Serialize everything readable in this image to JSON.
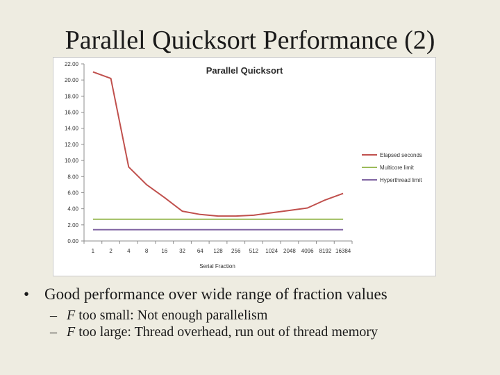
{
  "slide": {
    "title": "Parallel Quicksort Performance (2)",
    "bullet": "Good performance over wide range of fraction values",
    "bullet_marker": "•",
    "subbullets": [
      {
        "marker": "–",
        "var": "F",
        "text": " too small: Not enough parallelism"
      },
      {
        "marker": "–",
        "var": "F",
        "text": " too large: Thread overhead, run out of thread memory"
      }
    ]
  },
  "chart_data": {
    "type": "line",
    "title": "Parallel Quicksort",
    "xlabel": "Serial Fraction",
    "ylabel": "",
    "categories": [
      "1",
      "2",
      "4",
      "8",
      "16",
      "32",
      "64",
      "128",
      "256",
      "512",
      "1024",
      "2048",
      "4096",
      "8192",
      "16384"
    ],
    "ylim": [
      0,
      22
    ],
    "yticks": [
      "0.00",
      "2.00",
      "4.00",
      "6.00",
      "8.00",
      "10.00",
      "12.00",
      "14.00",
      "16.00",
      "18.00",
      "20.00",
      "22.00"
    ],
    "grid": false,
    "legend_position": "right",
    "series": [
      {
        "name": "Elapsed seconds",
        "color": "#c0504d",
        "values": [
          21.0,
          20.2,
          9.2,
          7.0,
          5.4,
          3.7,
          3.3,
          3.1,
          3.1,
          3.2,
          3.5,
          3.8,
          4.1,
          5.1,
          5.9
        ]
      },
      {
        "name": "Multicore limit",
        "color": "#9bbb59",
        "values": [
          2.7,
          2.7,
          2.7,
          2.7,
          2.7,
          2.7,
          2.7,
          2.7,
          2.7,
          2.7,
          2.7,
          2.7,
          2.7,
          2.7,
          2.7
        ]
      },
      {
        "name": "Hyperthread limit",
        "color": "#8064a2",
        "values": [
          1.4,
          1.4,
          1.4,
          1.4,
          1.4,
          1.4,
          1.4,
          1.4,
          1.4,
          1.4,
          1.4,
          1.4,
          1.4,
          1.4,
          1.4
        ]
      }
    ]
  }
}
